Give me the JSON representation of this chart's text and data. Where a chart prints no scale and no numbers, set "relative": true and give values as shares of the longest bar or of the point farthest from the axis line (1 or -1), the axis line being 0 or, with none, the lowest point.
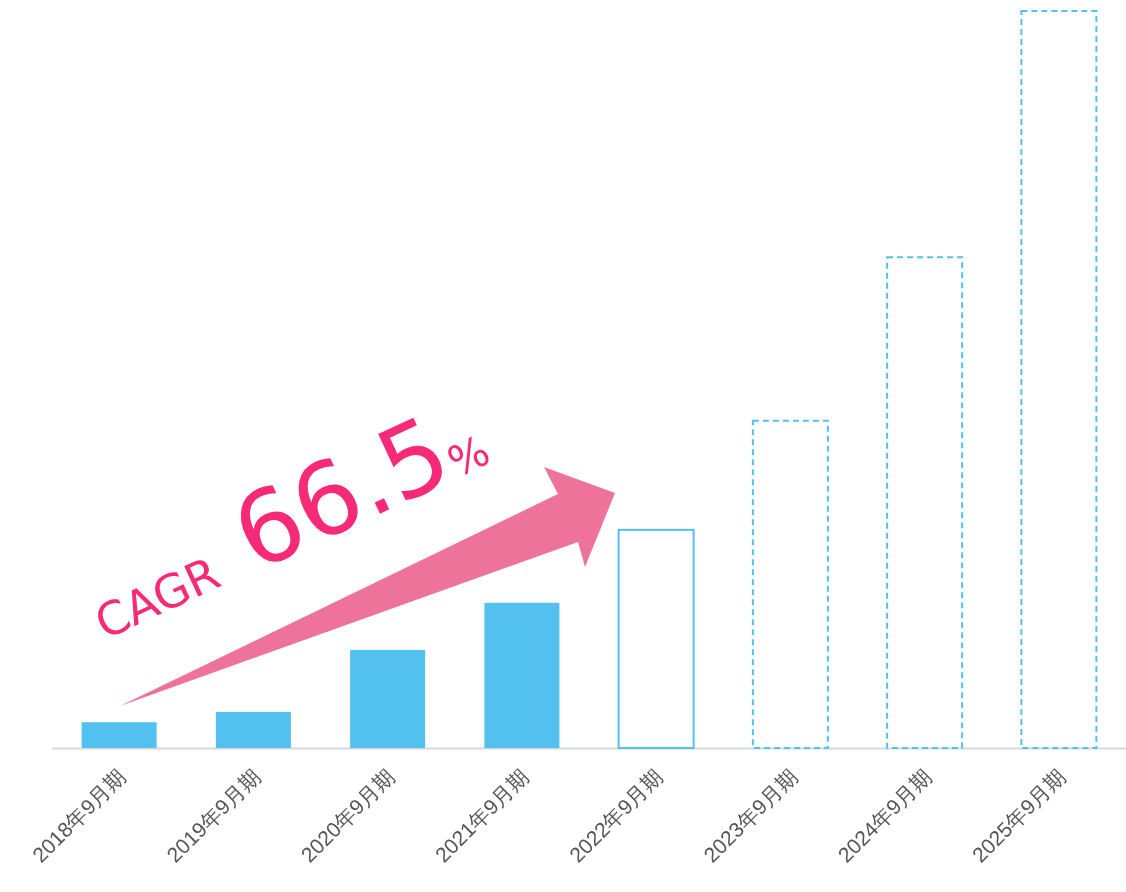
{
  "chart_data": {
    "type": "bar",
    "relative": true,
    "categories": [
      "2018年9月期",
      "2019年9月期",
      "2020年9月期",
      "2021年9月期",
      "2022年9月期",
      "2023年9月期",
      "2024年9月期",
      "2025年9月期"
    ],
    "series": [
      {
        "color": "#52c1ef",
        "values": [
          0.035,
          0.049,
          0.133,
          0.197,
          null,
          null,
          null,
          null
        ]
      },
      {
        "color": "#52c1ef",
        "line_style": "solid",
        "values": [
          null,
          null,
          null,
          null,
          0.296,
          null,
          null,
          null
        ]
      },
      {
        "color": "#52c1ef",
        "line_style": "dashed",
        "values": [
          null,
          null,
          null,
          null,
          null,
          0.444,
          0.666,
          1
        ]
      }
    ],
    "annotations": [
      "CAGR",
      "66.5%"
    ]
  }
}
